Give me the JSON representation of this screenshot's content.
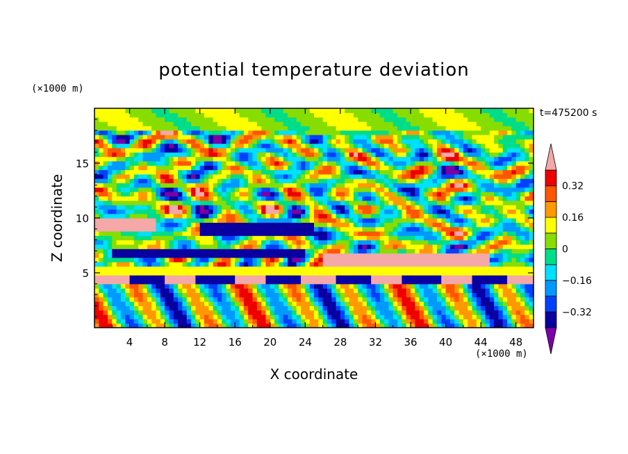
{
  "title": "potential temperature deviation",
  "timestamp": "t=475200 s",
  "chart_data": {
    "type": "heatmap",
    "title": "potential temperature deviation",
    "xlabel": "X coordinate",
    "ylabel": "Z coordinate",
    "x_unit": "(×1000 m)",
    "y_unit": "(×1000 m)",
    "xlim": [
      0,
      50
    ],
    "ylim": [
      0,
      20
    ],
    "x_ticks": [
      "4",
      "8",
      "12",
      "16",
      "20",
      "24",
      "28",
      "32",
      "36",
      "40",
      "44",
      "48"
    ],
    "y_ticks": [
      "5",
      "10",
      "15"
    ],
    "colorbar": {
      "levels": [
        -0.4,
        -0.32,
        -0.24,
        -0.16,
        -0.08,
        0,
        0.08,
        0.16,
        0.24,
        0.32,
        0.4
      ],
      "tick_labels": [
        "0.32",
        "0.16",
        "0",
        "−0.16",
        "−0.32"
      ],
      "tick_values": [
        0.32,
        0.16,
        0,
        -0.16,
        -0.32
      ],
      "colors": [
        "#7a00a8",
        "#0a00a0",
        "#0040ff",
        "#0099ff",
        "#00e0ff",
        "#00dd88",
        "#88dd00",
        "#ffff00",
        "#ff9900",
        "#ff5500",
        "#ee0000",
        "#f4a8a8"
      ],
      "extend": "both"
    }
  }
}
